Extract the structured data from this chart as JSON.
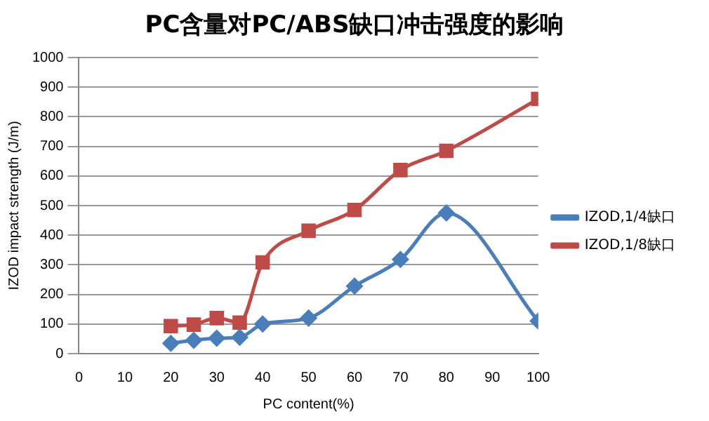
{
  "chart_data": {
    "type": "line",
    "title": "PC含量对PC/ABS缺口冲击强度的影响",
    "xlabel": "PC content(%)",
    "ylabel": "IZOD impact strength (J/m)",
    "x": [
      20,
      25,
      30,
      35,
      40,
      50,
      60,
      70,
      80,
      100
    ],
    "series": [
      {
        "name": "IZOD,1/4缺口",
        "color": "#4a7ebb",
        "marker": "diamond",
        "values": [
          35,
          45,
          52,
          55,
          100,
          120,
          228,
          318,
          475,
          110
        ]
      },
      {
        "name": "IZOD,1/8缺口",
        "color": "#be4b48",
        "marker": "square",
        "values": [
          93,
          98,
          120,
          105,
          308,
          415,
          485,
          620,
          685,
          860
        ]
      }
    ],
    "xlim": [
      0,
      100
    ],
    "xticks": [
      0,
      10,
      20,
      30,
      40,
      50,
      60,
      70,
      80,
      90,
      100
    ],
    "ylim": [
      0,
      1000
    ],
    "yticks": [
      0,
      100,
      200,
      300,
      400,
      500,
      600,
      700,
      800,
      900,
      1000
    ],
    "grid": "y",
    "legend": "right"
  }
}
